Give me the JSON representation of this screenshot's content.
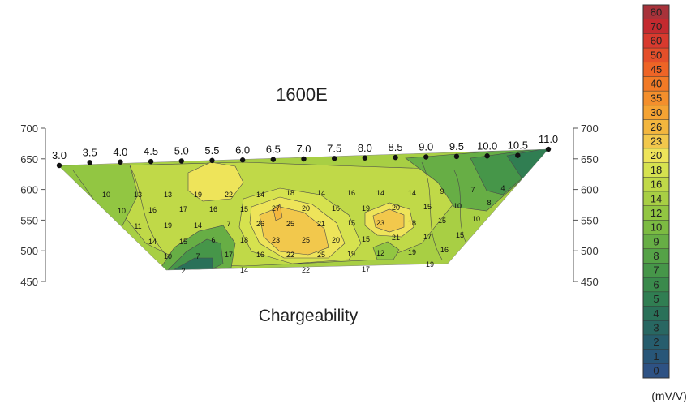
{
  "chart_data": {
    "type": "heatmap",
    "title": "1600E",
    "subtitle": "Chargeability",
    "unit": "(mV/V)",
    "elevation_ticks": [
      "700",
      "650",
      "600",
      "550",
      "500",
      "450"
    ],
    "elevation_values": [
      700,
      650,
      600,
      550,
      500,
      450
    ],
    "stations": [
      "3.0",
      "3.5",
      "4.0",
      "4.5",
      "5.0",
      "5.5",
      "6.0",
      "6.5",
      "7.0",
      "7.5",
      "8.0",
      "8.5",
      "9.0",
      "9.5",
      "10.0",
      "10.5",
      "11.0"
    ],
    "colorbar": [
      {
        "label": "80",
        "color": "#a8323a"
      },
      {
        "label": "70",
        "color": "#c42a2f"
      },
      {
        "label": "60",
        "color": "#d83a2e"
      },
      {
        "label": "50",
        "color": "#e54f2a"
      },
      {
        "label": "45",
        "color": "#ee6426"
      },
      {
        "label": "40",
        "color": "#f27a26"
      },
      {
        "label": "35",
        "color": "#f48f2c"
      },
      {
        "label": "30",
        "color": "#f5a333"
      },
      {
        "label": "26",
        "color": "#f3b63e"
      },
      {
        "label": "23",
        "color": "#f2c84c"
      },
      {
        "label": "20",
        "color": "#eee45a"
      },
      {
        "label": "18",
        "color": "#d6e24f"
      },
      {
        "label": "16",
        "color": "#c0d948"
      },
      {
        "label": "14",
        "color": "#a8cf44"
      },
      {
        "label": "12",
        "color": "#92c642"
      },
      {
        "label": "10",
        "color": "#7cbb42"
      },
      {
        "label": "9",
        "color": "#67ae45"
      },
      {
        "label": "8",
        "color": "#55a247"
      },
      {
        "label": "7",
        "color": "#469649"
      },
      {
        "label": "6",
        "color": "#3a8a4c"
      },
      {
        "label": "5",
        "color": "#307e52"
      },
      {
        "label": "4",
        "color": "#2a7159"
      },
      {
        "label": "3",
        "color": "#286762"
      },
      {
        "label": "2",
        "color": "#265d6d"
      },
      {
        "label": "1",
        "color": "#285678"
      },
      {
        "label": "0",
        "color": "#2e5284"
      }
    ],
    "contour_labels": [
      {
        "x": 131,
        "y": 240,
        "text": "10"
      },
      {
        "x": 170,
        "y": 240,
        "text": "13"
      },
      {
        "x": 207,
        "y": 240,
        "text": "13"
      },
      {
        "x": 244,
        "y": 240,
        "text": "19"
      },
      {
        "x": 282,
        "y": 240,
        "text": "22"
      },
      {
        "x": 321,
        "y": 240,
        "text": "14"
      },
      {
        "x": 358,
        "y": 238,
        "text": "18"
      },
      {
        "x": 396,
        "y": 238,
        "text": "14"
      },
      {
        "x": 433,
        "y": 238,
        "text": "16"
      },
      {
        "x": 469,
        "y": 238,
        "text": "14"
      },
      {
        "x": 508,
        "y": 238,
        "text": "14"
      },
      {
        "x": 545,
        "y": 236,
        "text": "9"
      },
      {
        "x": 583,
        "y": 234,
        "text": "7"
      },
      {
        "x": 620,
        "y": 232,
        "text": "4"
      },
      {
        "x": 150,
        "y": 260,
        "text": "10"
      },
      {
        "x": 188,
        "y": 259,
        "text": "16"
      },
      {
        "x": 226,
        "y": 258,
        "text": "17"
      },
      {
        "x": 263,
        "y": 258,
        "text": "16"
      },
      {
        "x": 301,
        "y": 258,
        "text": "15"
      },
      {
        "x": 340,
        "y": 257,
        "text": "27"
      },
      {
        "x": 377,
        "y": 257,
        "text": "20"
      },
      {
        "x": 414,
        "y": 257,
        "text": "16"
      },
      {
        "x": 451,
        "y": 257,
        "text": "19"
      },
      {
        "x": 488,
        "y": 256,
        "text": "20"
      },
      {
        "x": 527,
        "y": 255,
        "text": "15"
      },
      {
        "x": 564,
        "y": 254,
        "text": "10"
      },
      {
        "x": 603,
        "y": 250,
        "text": "8"
      },
      {
        "x": 170,
        "y": 279,
        "text": "11"
      },
      {
        "x": 207,
        "y": 278,
        "text": "19"
      },
      {
        "x": 244,
        "y": 278,
        "text": "14"
      },
      {
        "x": 282,
        "y": 276,
        "text": "7"
      },
      {
        "x": 321,
        "y": 276,
        "text": "26"
      },
      {
        "x": 358,
        "y": 276,
        "text": "25"
      },
      {
        "x": 396,
        "y": 276,
        "text": "21"
      },
      {
        "x": 433,
        "y": 275,
        "text": "15"
      },
      {
        "x": 469,
        "y": 275,
        "text": "23"
      },
      {
        "x": 508,
        "y": 275,
        "text": "18"
      },
      {
        "x": 545,
        "y": 272,
        "text": "15"
      },
      {
        "x": 587,
        "y": 270,
        "text": "10"
      },
      {
        "x": 188,
        "y": 298,
        "text": "14"
      },
      {
        "x": 226,
        "y": 298,
        "text": "15"
      },
      {
        "x": 263,
        "y": 296,
        "text": "6"
      },
      {
        "x": 301,
        "y": 296,
        "text": "18"
      },
      {
        "x": 340,
        "y": 296,
        "text": "23"
      },
      {
        "x": 377,
        "y": 296,
        "text": "25"
      },
      {
        "x": 414,
        "y": 296,
        "text": "20"
      },
      {
        "x": 451,
        "y": 295,
        "text": "15"
      },
      {
        "x": 488,
        "y": 293,
        "text": "21"
      },
      {
        "x": 527,
        "y": 292,
        "text": "17"
      },
      {
        "x": 567,
        "y": 290,
        "text": "15"
      },
      {
        "x": 207,
        "y": 316,
        "text": "10"
      },
      {
        "x": 244,
        "y": 316,
        "text": "7"
      },
      {
        "x": 282,
        "y": 314,
        "text": "17"
      },
      {
        "x": 321,
        "y": 314,
        "text": "16"
      },
      {
        "x": 358,
        "y": 314,
        "text": "22"
      },
      {
        "x": 396,
        "y": 314,
        "text": "25"
      },
      {
        "x": 433,
        "y": 313,
        "text": "19"
      },
      {
        "x": 469,
        "y": 312,
        "text": "12"
      },
      {
        "x": 508,
        "y": 311,
        "text": "19"
      },
      {
        "x": 548,
        "y": 308,
        "text": "16"
      },
      {
        "x": 226,
        "y": 334,
        "text": "2"
      },
      {
        "x": 301,
        "y": 333,
        "text": "14"
      },
      {
        "x": 377,
        "y": 333,
        "text": "22"
      },
      {
        "x": 451,
        "y": 332,
        "text": "17"
      },
      {
        "x": 530,
        "y": 326,
        "text": "19"
      }
    ]
  }
}
